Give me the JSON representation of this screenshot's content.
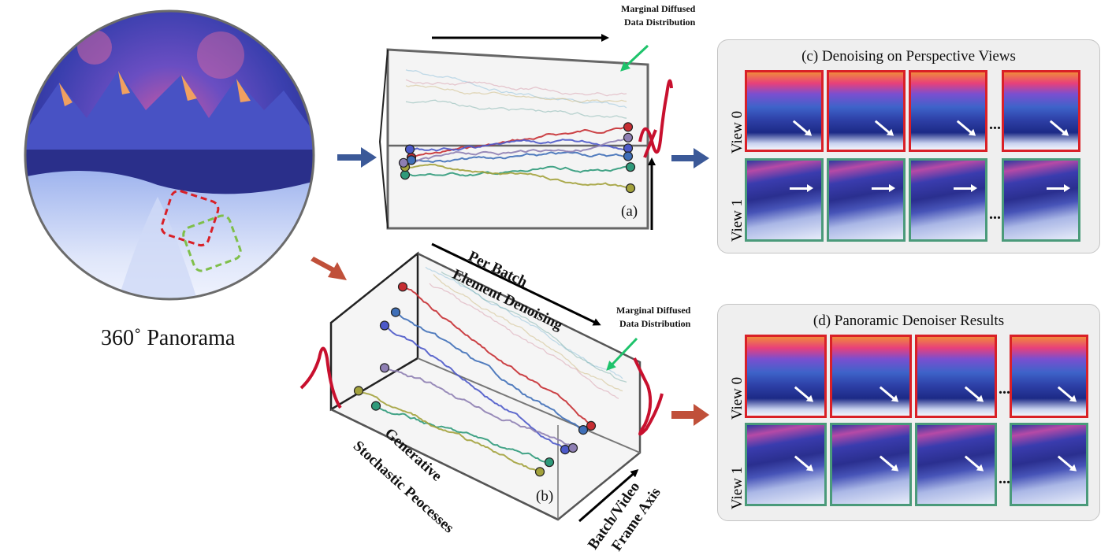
{
  "labels": {
    "panorama": "360˚ Panorama",
    "marginal_top_line1": "Marginal Diffused",
    "marginal_top_line2": "Data Distribution",
    "marginal_bottom_line1": "Marginal Diffused",
    "marginal_bottom_line2": "Data Distribution",
    "per_batch_line1": "Per Batch",
    "per_batch_line2": "Element Denoising",
    "generative_line1": "Generative",
    "generative_line2": "Stochastic Peocesses",
    "batch_axis_line1": "Batch/Video",
    "batch_axis_line2": "Frame Axis",
    "sub_a": "(a)",
    "sub_b": "(b)"
  },
  "panel_c": {
    "title": "(c) Denoising on Perspective Views",
    "row0": "View 0",
    "row1": "View 1",
    "ellipsis": "..."
  },
  "panel_d": {
    "title": "(d) Panoramic Denoiser Results",
    "row0": "View 0",
    "row1": "View 1",
    "ellipsis": "..."
  },
  "colors": {
    "arrow_blue": "#3b5998",
    "arrow_red": "#c0503a",
    "frame_red": "#d92027",
    "frame_green": "#4a9a7a",
    "marginal_curve": "#c8102e",
    "green_arrow": "#1ec36b"
  },
  "series_colors": [
    "#c62d32",
    "#4c59c9",
    "#3f6fb8",
    "#2f9a7a",
    "#a3a23c",
    "#8e7fb3",
    "#7fb8d8",
    "#c8b26f",
    "#6aa7a0",
    "#d28fa0"
  ]
}
